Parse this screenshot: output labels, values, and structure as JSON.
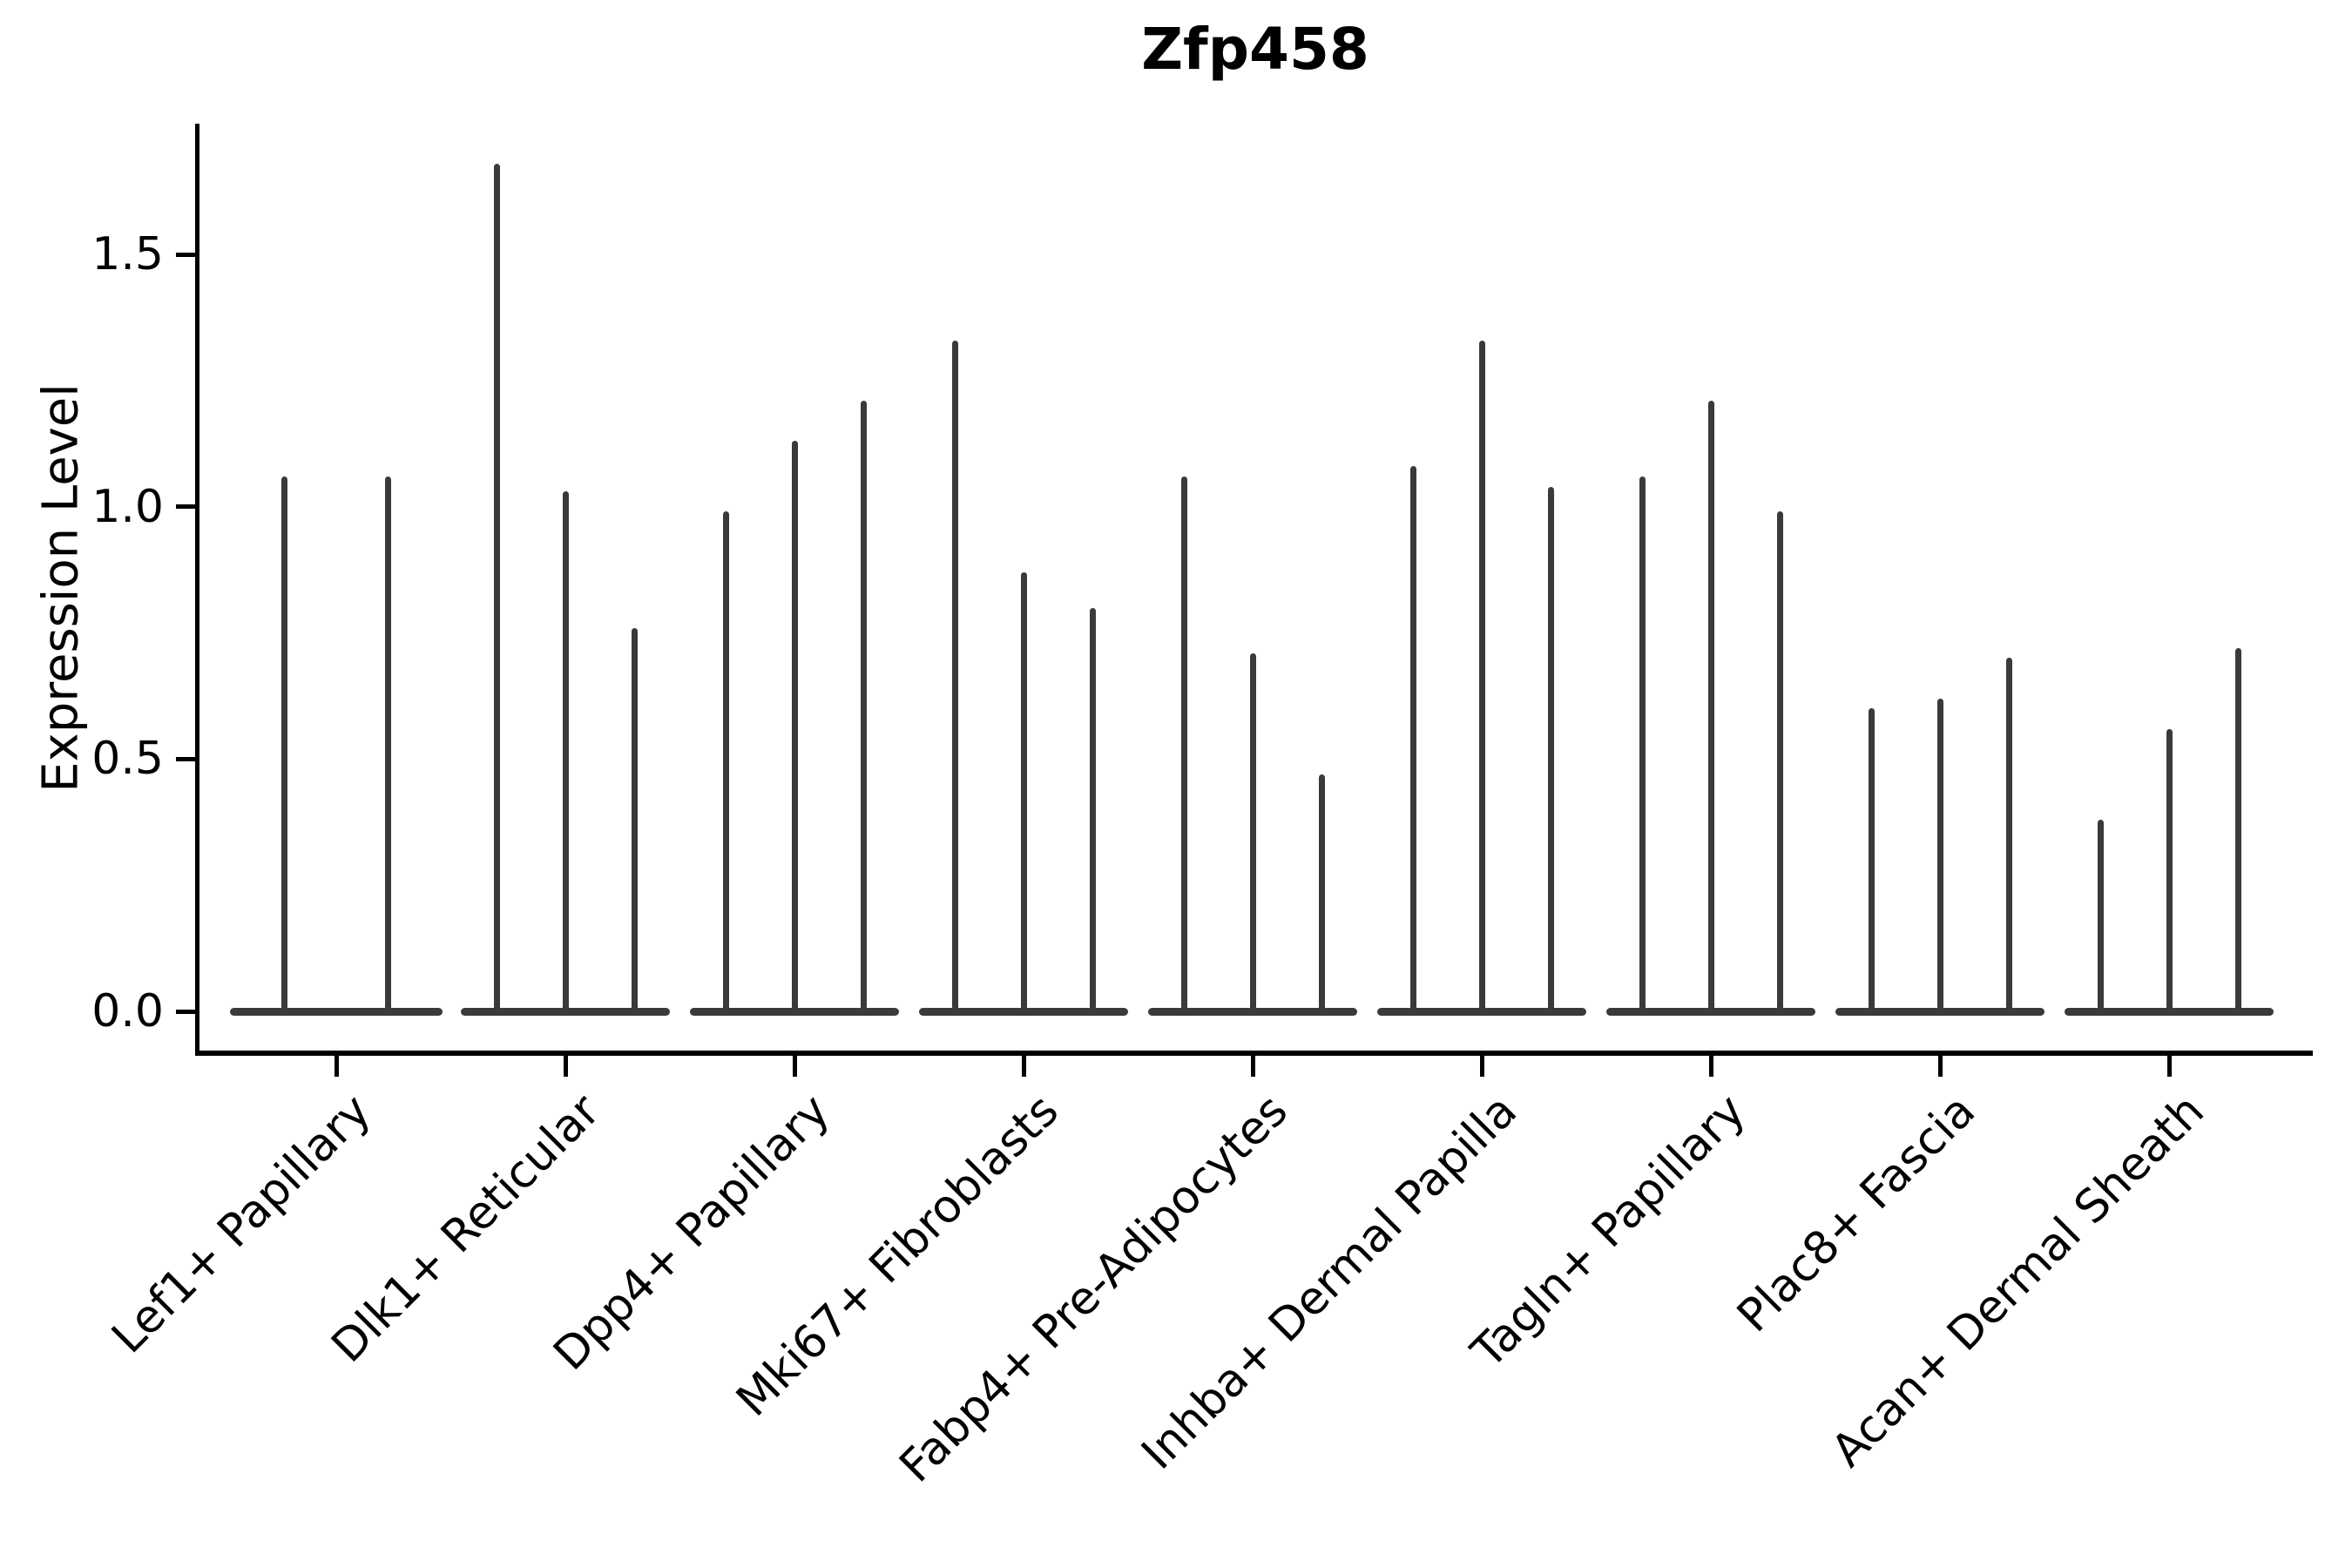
{
  "title": "Zfp458",
  "chart_data": {
    "type": "violin",
    "title": "Zfp458",
    "ylabel": "Expression Level",
    "xlabel": "",
    "yticks": [
      "0.0",
      "0.5",
      "1.0",
      "1.5"
    ],
    "ytick_values": [
      0.0,
      0.5,
      1.0,
      1.5
    ],
    "ylim": [
      -0.08,
      1.76
    ],
    "x_tick_rotation": 45,
    "grid": false,
    "legend": false,
    "violin_color": "#3a3a3a",
    "axis_color": "#000000",
    "description": "Violin plot of gene expression; each category shows narrow spike-shaped violins (mass at 0) whose tips mark the maximum expression level.",
    "categories": [
      "Lef1+ Papillary",
      "Dlk1+ Reticular",
      "Dpp4+ Papillary",
      "Mki67+ Fibroblasts",
      "Fabp4+ Pre-Adipocytes",
      "Inhba+ Dermal Papilla",
      "Tagln+ Papillary",
      "Plac8+ Fascia",
      "Acan+ Dermal Sheath"
    ],
    "groups": [
      {
        "category": "Lef1+ Papillary",
        "violin_maxima": [
          1.06,
          1.06
        ]
      },
      {
        "category": "Dlk1+ Reticular",
        "violin_maxima": [
          1.68,
          1.03,
          0.76
        ]
      },
      {
        "category": "Dpp4+ Papillary",
        "violin_maxima": [
          0.99,
          1.13,
          1.21
        ]
      },
      {
        "category": "Mki67+ Fibroblasts",
        "violin_maxima": [
          1.33,
          0.87,
          0.8
        ]
      },
      {
        "category": "Fabp4+ Pre-Adipocytes",
        "violin_maxima": [
          1.06,
          0.71,
          0.47
        ]
      },
      {
        "category": "Inhba+ Dermal Papilla",
        "violin_maxima": [
          1.08,
          1.33,
          1.04
        ]
      },
      {
        "category": "Tagln+ Papillary",
        "violin_maxima": [
          1.06,
          1.21,
          0.99
        ]
      },
      {
        "category": "Plac8+ Fascia",
        "violin_maxima": [
          0.6,
          0.62,
          0.7
        ]
      },
      {
        "category": "Acan+ Dermal Sheath",
        "violin_maxima": [
          0.38,
          0.56,
          0.72
        ]
      }
    ]
  }
}
